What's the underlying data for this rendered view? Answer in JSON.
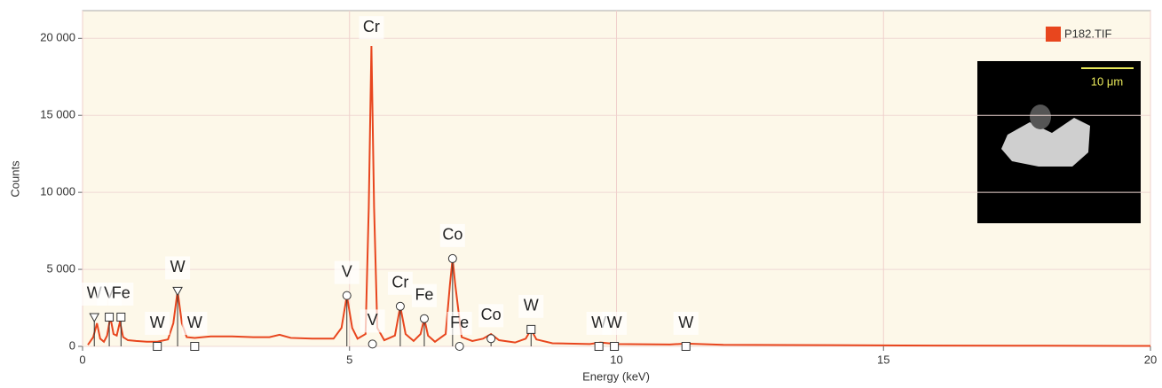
{
  "chart_data": {
    "type": "line",
    "x_label": "Energy (keV)",
    "y_label": "Counts",
    "xlim": [
      0,
      20
    ],
    "ylim": [
      0,
      21800
    ],
    "xticks": [
      0,
      5,
      10,
      15,
      20
    ],
    "yticks": [
      0,
      {
        "value": 5000,
        "label": "5 000"
      },
      {
        "value": 10000,
        "label": "10 000"
      },
      {
        "value": 15000,
        "label": "15 000"
      },
      {
        "value": 20000,
        "label": "20 000"
      }
    ],
    "grid": true,
    "legend": "top-right",
    "series": [
      {
        "name": "P182.TIF",
        "color": "#e8461e",
        "x": [
          0.1,
          0.2,
          0.27,
          0.33,
          0.4,
          0.46,
          0.52,
          0.58,
          0.64,
          0.7,
          0.76,
          0.85,
          1.0,
          1.2,
          1.4,
          1.6,
          1.7,
          1.78,
          1.86,
          1.95,
          2.1,
          2.4,
          2.8,
          3.2,
          3.5,
          3.69,
          3.9,
          4.3,
          4.7,
          4.85,
          4.95,
          5.05,
          5.15,
          5.3,
          5.36,
          5.41,
          5.46,
          5.52,
          5.65,
          5.85,
          5.95,
          6.05,
          6.2,
          6.33,
          6.4,
          6.47,
          6.6,
          6.8,
          6.88,
          6.93,
          6.98,
          7.1,
          7.3,
          7.5,
          7.65,
          7.8,
          8.1,
          8.3,
          8.4,
          8.5,
          8.8,
          9.5,
          9.7,
          10.0,
          11.0,
          11.3,
          12,
          14,
          16,
          18,
          20
        ],
        "values": [
          100,
          600,
          1500,
          500,
          300,
          700,
          1900,
          800,
          700,
          1600,
          600,
          400,
          350,
          300,
          300,
          450,
          1500,
          3600,
          1500,
          600,
          550,
          650,
          650,
          600,
          600,
          750,
          550,
          500,
          500,
          1200,
          3300,
          1200,
          500,
          800,
          9000,
          19500,
          9000,
          1200,
          400,
          700,
          2600,
          800,
          350,
          800,
          1800,
          700,
          300,
          800,
          4000,
          5700,
          4000,
          600,
          350,
          500,
          800,
          400,
          250,
          500,
          1100,
          450,
          200,
          150,
          250,
          150,
          120,
          180,
          100,
          80,
          50,
          40,
          30
        ]
      }
    ],
    "annotations": [
      {
        "text": "W",
        "x": 0.22,
        "y": 1900,
        "marker": "triangle"
      },
      {
        "text": "V",
        "x": 0.5,
        "y": 1900,
        "marker": "square"
      },
      {
        "text": "Fe",
        "x": 0.72,
        "y": 1900,
        "marker": "square"
      },
      {
        "text": "W",
        "x": 1.4,
        "y": 0,
        "marker": "square"
      },
      {
        "text": "W",
        "x": 1.78,
        "y": 3600,
        "marker": "triangle"
      },
      {
        "text": "W",
        "x": 2.1,
        "y": 0,
        "marker": "square"
      },
      {
        "text": "V",
        "x": 4.95,
        "y": 3300,
        "marker": "circle"
      },
      {
        "text": "Cr",
        "x": 5.41,
        "y": 20700,
        "marker": "none"
      },
      {
        "text": "V",
        "x": 5.43,
        "y": 150,
        "marker": "circle"
      },
      {
        "text": "Cr",
        "x": 5.95,
        "y": 2600,
        "marker": "circle"
      },
      {
        "text": "Fe",
        "x": 6.4,
        "y": 1800,
        "marker": "circle"
      },
      {
        "text": "Co",
        "x": 6.93,
        "y": 5700,
        "marker": "circle"
      },
      {
        "text": "Fe",
        "x": 7.06,
        "y": 0,
        "marker": "circle"
      },
      {
        "text": "Co",
        "x": 7.65,
        "y": 500,
        "marker": "circle"
      },
      {
        "text": "W",
        "x": 8.4,
        "y": 1100,
        "marker": "square"
      },
      {
        "text": "W",
        "x": 9.67,
        "y": 0,
        "marker": "square"
      },
      {
        "text": "W",
        "x": 9.96,
        "y": 0,
        "marker": "square"
      },
      {
        "text": "W",
        "x": 11.3,
        "y": 0,
        "marker": "square"
      }
    ],
    "inset": {
      "scale_label": "10 μm"
    }
  }
}
